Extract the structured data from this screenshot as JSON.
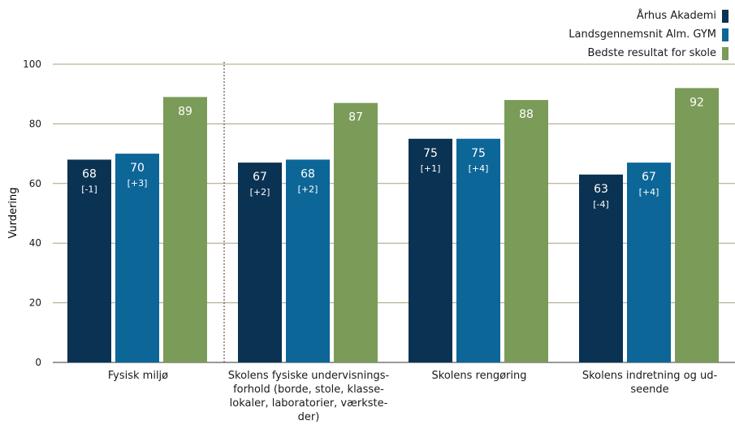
{
  "chart_data": {
    "type": "bar",
    "ylabel": "Vurdering",
    "xlabel": "",
    "ylim": [
      0,
      100
    ],
    "yticks": [
      0,
      20,
      40,
      60,
      80,
      100
    ],
    "grid": true,
    "legend_position": "top-right",
    "categories": [
      [
        "Fysisk miljø"
      ],
      [
        "Skolens fysiske undervisnings-",
        "forhold (borde, stole, klasse-",
        "lokaler, laboratorier, værkste-",
        "der)"
      ],
      [
        "Skolens rengøring"
      ],
      [
        "Skolens indretning og ud-",
        "seende"
      ]
    ],
    "series": [
      {
        "name": "Århus Akademi",
        "color": "#0a3252",
        "values": [
          68,
          67,
          75,
          63
        ],
        "deltas": [
          "[-1]",
          "[+2]",
          "[+1]",
          "[-4]"
        ]
      },
      {
        "name": "Landsgennemsnit Alm. GYM",
        "color": "#0d6698",
        "values": [
          70,
          68,
          75,
          67
        ],
        "deltas": [
          "[+3]",
          "[+2]",
          "[+4]",
          "[+4]"
        ]
      },
      {
        "name": "Bedste resultat for skole",
        "color": "#7b9b58",
        "values": [
          89,
          87,
          88,
          92
        ],
        "deltas": [
          "",
          "",
          "",
          ""
        ]
      }
    ]
  }
}
